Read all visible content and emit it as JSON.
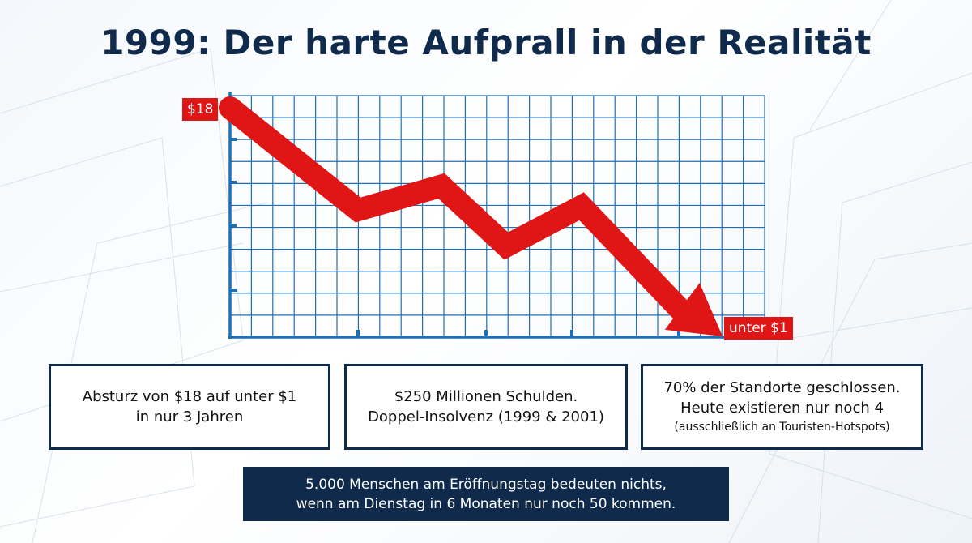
{
  "title": "1999: Der harte Aufprall in der Realität",
  "colors": {
    "navy": "#0f2a4a",
    "red": "#e01515",
    "grid": "#1f6fb5"
  },
  "chart_data": {
    "type": "line",
    "x": [
      0,
      1,
      2,
      3,
      4,
      5
    ],
    "values": [
      18,
      9.5,
      11.5,
      6.5,
      9.8,
      0.5
    ],
    "ylim": [
      0,
      18
    ],
    "grid": true,
    "labels": {
      "start": "$18",
      "end": "unter $1"
    }
  },
  "cards": [
    {
      "lines": [
        "Absturz von $18 auf unter $1",
        "in nur 3 Jahren"
      ]
    },
    {
      "lines": [
        "$250 Millionen Schulden.",
        "Doppel-Insolvenz (1999 & 2001)"
      ]
    },
    {
      "lines": [
        "70% der Standorte geschlossen.",
        "Heute existieren nur noch 4"
      ],
      "note": "(ausschließlich an Touristen-Hotspots)"
    }
  ],
  "banner": {
    "line1": "5.000 Menschen am Eröffnungstag bedeuten nichts,",
    "line2": "wenn am Dienstag in 6 Monaten nur noch 50 kommen."
  }
}
